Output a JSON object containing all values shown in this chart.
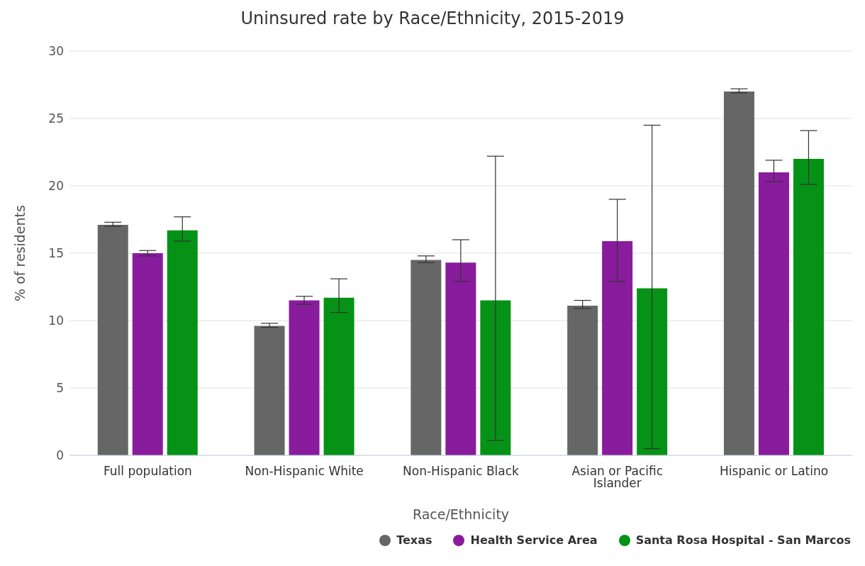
{
  "chart_data": {
    "type": "bar",
    "title": "Uninsured rate by Race/Ethnicity, 2015-2019",
    "xlabel": "Race/Ethnicity",
    "ylabel": "% of residents",
    "categories": [
      "Full population",
      "Non-Hispanic White",
      "Non-Hispanic Black",
      "Asian or Pacific Islander",
      "Hispanic or Latino"
    ],
    "series": [
      {
        "name": "Texas",
        "color": "#666666",
        "values": [
          17.1,
          9.6,
          14.5,
          11.1,
          27.0
        ],
        "errors": [
          [
            17.0,
            17.3
          ],
          [
            9.5,
            9.8
          ],
          [
            14.3,
            14.8
          ],
          [
            10.9,
            11.5
          ],
          [
            26.9,
            27.2
          ]
        ]
      },
      {
        "name": "Health Service Area",
        "color": "#881c9c",
        "values": [
          15.0,
          11.5,
          14.3,
          15.9,
          21.0
        ],
        "errors": [
          [
            14.8,
            15.2
          ],
          [
            11.2,
            11.8
          ],
          [
            12.9,
            16.0
          ],
          [
            12.9,
            19.0
          ],
          [
            20.3,
            21.9
          ]
        ]
      },
      {
        "name": "Santa Rosa Hospital - San Marcos",
        "color": "#059216",
        "values": [
          16.7,
          11.7,
          11.5,
          12.4,
          22.0
        ],
        "errors": [
          [
            15.9,
            17.7
          ],
          [
            10.6,
            13.1
          ],
          [
            1.1,
            22.2
          ],
          [
            0.5,
            24.5
          ],
          [
            20.1,
            24.1
          ]
        ]
      }
    ],
    "ylim": [
      0,
      30
    ],
    "yticks": [
      0,
      5,
      10,
      15,
      20,
      25,
      30
    ],
    "grid": "y",
    "legend": "bottom right"
  }
}
